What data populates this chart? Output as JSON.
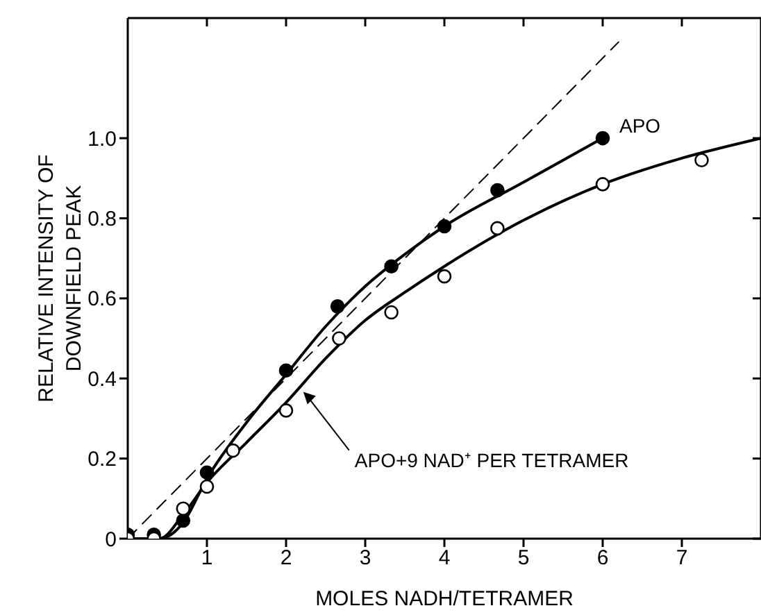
{
  "chart_data": {
    "type": "scatter",
    "xlabel": "MOLES NADH/TETRAMER",
    "ylabel": "RELATIVE INTENSITY OF\nDOWNFIELD PEAK",
    "xlim": [
      0,
      8
    ],
    "ylim": [
      0,
      1.3
    ],
    "xticks": [
      1,
      2,
      3,
      4,
      5,
      6,
      7
    ],
    "yticks": [
      0,
      0.2,
      0.4,
      0.6,
      0.8,
      {
        "value": 1,
        "label": "1.0"
      }
    ],
    "marker": "circle",
    "series": [
      {
        "color": "#000000",
        "x": [
          0,
          0.33,
          0.7,
          1,
          2,
          2.65,
          3.33,
          4,
          4.67,
          6
        ],
        "values": [
          0.01,
          0.01,
          0.045,
          0.165,
          0.42,
          0.58,
          0.68,
          0.78,
          0.87,
          1.0
        ]
      },
      {
        "color": "#ffffff",
        "x": [
          0,
          0.33,
          0.7,
          1,
          1.33,
          2,
          2.67,
          3.33,
          4,
          4.67,
          6,
          7.25
        ],
        "values": [
          0,
          0,
          0.075,
          0.13,
          0.22,
          0.32,
          0.5,
          0.565,
          0.655,
          0.775,
          0.885,
          0.945
        ]
      },
      {
        "type": "line",
        "color": "#000000",
        "line_style": "solid",
        "marker": "none",
        "x": [
          0,
          0.4,
          0.7,
          1,
          1.5,
          2,
          2.5,
          3,
          3.5,
          4,
          5,
          6
        ],
        "values": [
          0,
          0,
          0.04,
          0.15,
          0.29,
          0.41,
          0.53,
          0.63,
          0.71,
          0.78,
          0.89,
          1.0
        ]
      },
      {
        "type": "line",
        "color": "#000000",
        "line_style": "solid",
        "marker": "none",
        "x": [
          0,
          0.4,
          0.7,
          1,
          1.5,
          2,
          2.5,
          3,
          3.5,
          4,
          5,
          6,
          7,
          8
        ],
        "values": [
          0,
          0,
          0.06,
          0.14,
          0.24,
          0.34,
          0.45,
          0.545,
          0.615,
          0.68,
          0.795,
          0.885,
          0.95,
          1.0
        ]
      },
      {
        "type": "line",
        "color": "#000000",
        "line_style": "dashed",
        "marker": "none",
        "x": [
          0,
          6.2
        ],
        "values": [
          0,
          1.24
        ]
      }
    ],
    "annotations": [
      {
        "text": "APO",
        "x": 6,
        "y": 1.0
      },
      {
        "text": "APO+9 NAD⁺ PER TETRAMER",
        "x": 2.2,
        "y": 0.37
      }
    ]
  }
}
